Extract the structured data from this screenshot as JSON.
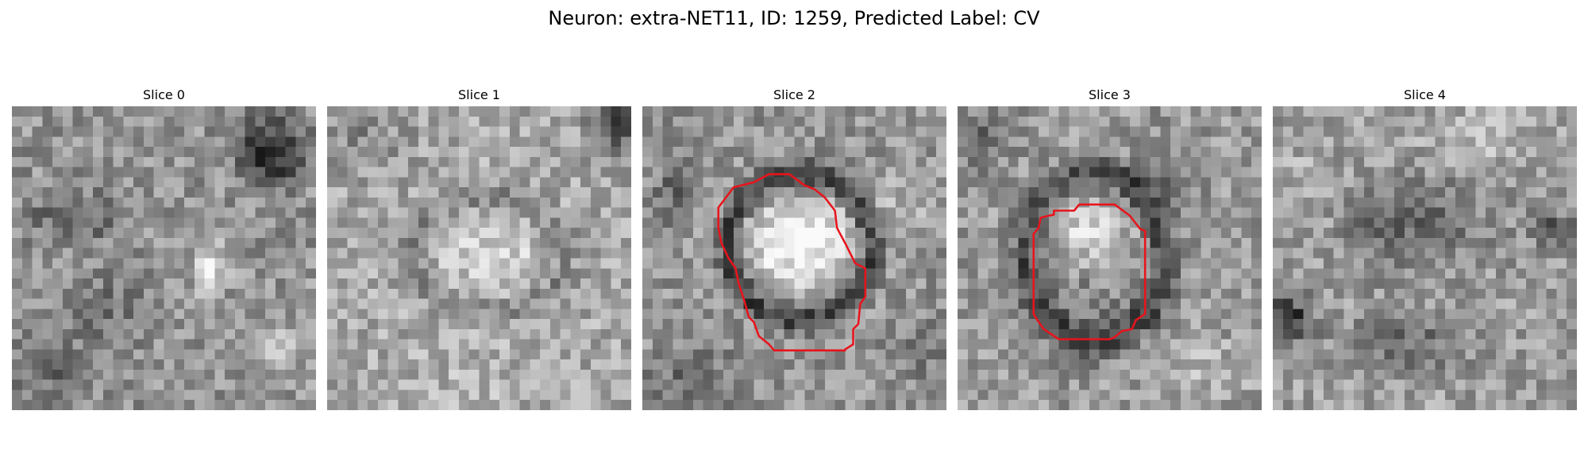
{
  "figure": {
    "title": "Neuron: extra-NET11, ID: 1259, Predicted Label: CV"
  },
  "slices": [
    {
      "label": "Slice 0",
      "has_contour": false
    },
    {
      "label": "Slice 1",
      "has_contour": false
    },
    {
      "label": "Slice 2",
      "has_contour": true
    },
    {
      "label": "Slice 3",
      "has_contour": true
    },
    {
      "label": "Slice 4",
      "has_contour": false
    }
  ],
  "colors": {
    "contour": "#e8141c",
    "background": "#ffffff"
  }
}
